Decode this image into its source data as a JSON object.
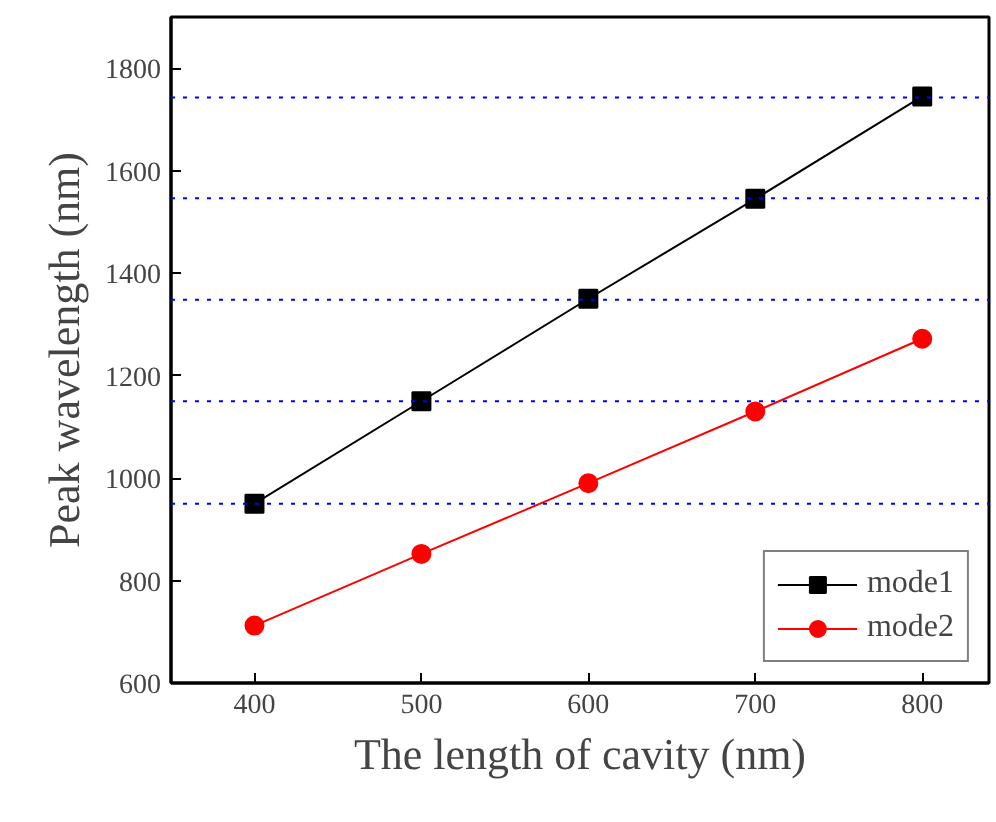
{
  "chart_data": {
    "type": "line",
    "xlabel": "The length of cavity (nm)",
    "ylabel": "Peak wavelength (nm)",
    "x": [
      400,
      500,
      600,
      700,
      800
    ],
    "series": [
      {
        "name": "mode1",
        "color": "#000000",
        "marker": "square",
        "values": [
          950,
          1150,
          1350,
          1545,
          1745
        ]
      },
      {
        "name": "mode2",
        "color": "#ff0000",
        "marker": "circle",
        "values": [
          712,
          852,
          990,
          1130,
          1272
        ]
      }
    ],
    "xlim": [
      350,
      840
    ],
    "xticks": [
      400,
      500,
      600,
      700,
      800
    ],
    "ylim": [
      600,
      1900
    ],
    "yticks": [
      600,
      800,
      1000,
      1200,
      1400,
      1600,
      1800
    ],
    "ref_lines": [
      {
        "axis": "y",
        "value": 950,
        "color": "#0000ff",
        "line_style": "dotted"
      },
      {
        "axis": "y",
        "value": 1150,
        "color": "#0000ff",
        "line_style": "dotted"
      },
      {
        "axis": "y",
        "value": 1348,
        "color": "#0000ff",
        "line_style": "dotted"
      },
      {
        "axis": "y",
        "value": 1546,
        "color": "#0000ff",
        "line_style": "dotted"
      },
      {
        "axis": "y",
        "value": 1743,
        "color": "#0000ff",
        "line_style": "dotted"
      }
    ],
    "grid": false,
    "legend": "bottom right",
    "line_style": "solid"
  }
}
